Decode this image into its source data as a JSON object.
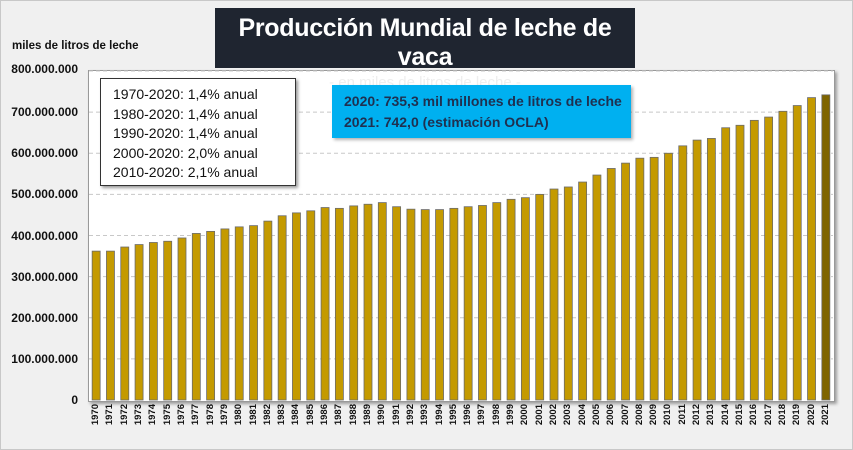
{
  "chart_data": {
    "type": "bar",
    "title": "Producción Mundial de leche de vaca",
    "subtitle": "- en miles de litros de leche -",
    "ylabel": "miles de litros de leche",
    "xlabel": "",
    "ylim": [
      0,
      800000000
    ],
    "yticks": [
      "0",
      "100.000.000",
      "200.000.000",
      "300.000.000",
      "400.000.000",
      "500.000.000",
      "600.000.000",
      "700.000.000",
      "800.000.000"
    ],
    "ytick_values": [
      0,
      100000000,
      200000000,
      300000000,
      400000000,
      500000000,
      600000000,
      700000000,
      800000000
    ],
    "grid": "horizontal dashed",
    "categories": [
      "1970",
      "1971",
      "1972",
      "1973",
      "1974",
      "1975",
      "1976",
      "1977",
      "1978",
      "1979",
      "1980",
      "1981",
      "1982",
      "1983",
      "1984",
      "1985",
      "1986",
      "1987",
      "1988",
      "1989",
      "1990",
      "1991",
      "1992",
      "1993",
      "1994",
      "1995",
      "1996",
      "1997",
      "1998",
      "1999",
      "2000",
      "2001",
      "2002",
      "2003",
      "2004",
      "2005",
      "2006",
      "2007",
      "2008",
      "2009",
      "2010",
      "2011",
      "2012",
      "2013",
      "2014",
      "2015",
      "2016",
      "2017",
      "2018",
      "2019",
      "2020",
      "2021"
    ],
    "values": [
      362000000,
      362000000,
      372000000,
      378000000,
      383000000,
      386000000,
      394000000,
      405000000,
      410000000,
      416000000,
      421000000,
      424000000,
      435000000,
      448000000,
      455000000,
      460000000,
      468000000,
      466000000,
      472000000,
      476000000,
      480000000,
      470000000,
      464000000,
      463000000,
      463000000,
      466000000,
      470000000,
      473000000,
      480000000,
      488000000,
      492000000,
      500000000,
      513000000,
      518000000,
      530000000,
      547000000,
      563000000,
      576000000,
      588000000,
      590000000,
      600000000,
      618000000,
      632000000,
      636000000,
      662000000,
      668000000,
      680000000,
      688000000,
      702000000,
      716000000,
      735300000,
      742000000
    ],
    "colors": {
      "bar": "#c49a00",
      "bar_estimate": "#7f6500",
      "bar_edge": "#6b6b6b",
      "title_bg": "#1f2530",
      "callout_bg": "#00b0f0"
    },
    "annotations": {
      "growth_rates": [
        "1970-2020:  1,4% anual",
        "1980-2020:  1,4% anual",
        "1990-2020:  1,4% anual",
        "2000-2020:  2,0% anual",
        "2010-2020:  2,1% anual"
      ],
      "callout": [
        "2020:  735,3  mil millones de litros de leche",
        "2021:  742,0  (estimación OCLA)"
      ]
    }
  }
}
